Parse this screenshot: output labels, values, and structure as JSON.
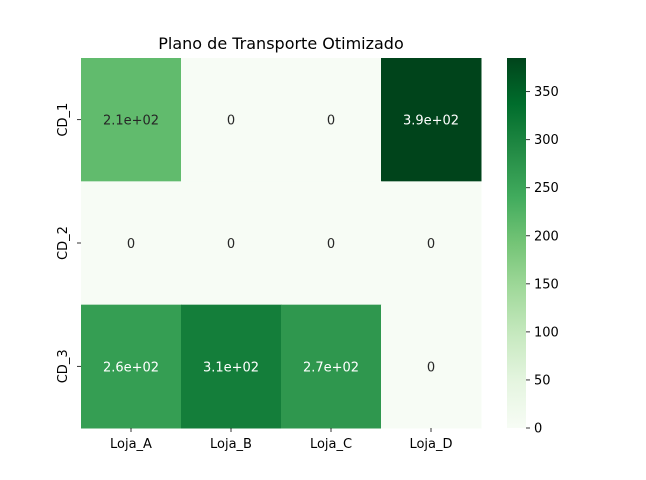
{
  "chart_data": {
    "type": "heatmap",
    "title": "Plano de Transporte Otimizado",
    "xlabel": "",
    "ylabel": "",
    "x_categories": [
      "Loja_A",
      "Loja_B",
      "Loja_C",
      "Loja_D"
    ],
    "y_categories": [
      "CD_1",
      "CD_2",
      "CD_3"
    ],
    "values": [
      [
        210,
        0,
        0,
        390
      ],
      [
        0,
        0,
        0,
        0
      ],
      [
        260,
        310,
        270,
        0
      ]
    ],
    "annotations": [
      [
        "2.1e+02",
        "0",
        "0",
        "3.9e+02"
      ],
      [
        "0",
        "0",
        "0",
        "0"
      ],
      [
        "2.6e+02",
        "3.1e+02",
        "2.7e+02",
        "0"
      ]
    ],
    "colorbar": {
      "min": 0,
      "max": 385,
      "ticks": [
        0,
        50,
        100,
        150,
        200,
        250,
        300,
        350
      ],
      "colormap": "Greens",
      "colors": [
        "#f7fcf5",
        "#e5f5e0",
        "#c7e9c0",
        "#a1d99b",
        "#74c476",
        "#41ab5d",
        "#238b45",
        "#006d2c",
        "#00441b"
      ]
    }
  }
}
